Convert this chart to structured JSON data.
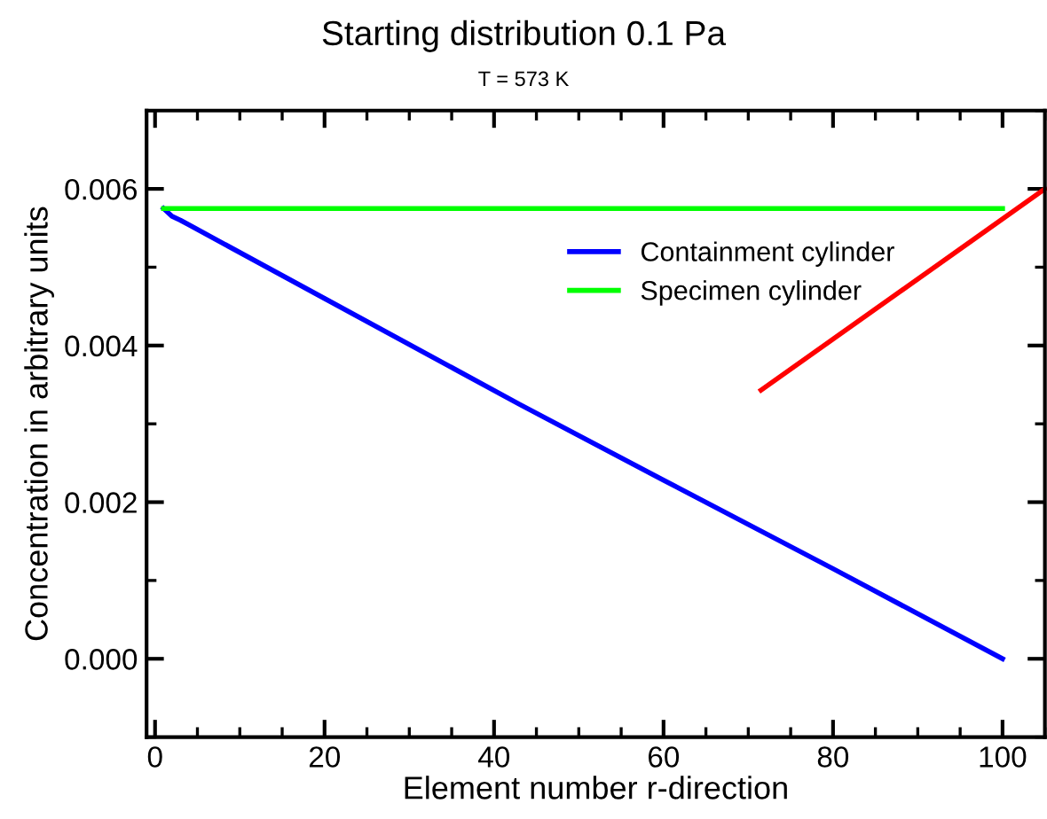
{
  "chart_data": {
    "type": "line",
    "title": "Starting distribution 0.1 Pa",
    "subtitle": "T = 573 K",
    "xlabel": "Element number r-direction",
    "ylabel": "Concentration in arbitrary units",
    "series": [
      {
        "name": "Containment cylinder",
        "color": "#0000ff",
        "x": [
          1,
          2,
          3,
          20,
          43,
          60,
          80,
          100
        ],
        "values": [
          0.00575,
          0.00565,
          0.0056,
          0.0046,
          0.00325,
          0.00228,
          0.00115,
          0
        ]
      },
      {
        "name": "Specimen cylinder",
        "color": "#00ff00",
        "x": [
          1,
          100
        ],
        "values": [
          0.00575,
          0.00575
        ]
      },
      {
        "color": "#ff0000",
        "x": [
          71.5,
          105
        ],
        "values": [
          0.00343,
          0.006
        ]
      }
    ],
    "xlim": [
      -1,
      105
    ],
    "xticks": [
      0,
      20,
      40,
      60,
      80,
      100
    ],
    "ylim": [
      -0.001,
      0.007
    ],
    "yticks": [
      {
        "value": 0,
        "label": "0.000"
      },
      {
        "value": 0.002,
        "label": "0.002"
      },
      {
        "value": 0.004,
        "label": "0.004"
      },
      {
        "value": 0.006,
        "label": "0.006"
      }
    ],
    "grid": false,
    "legend": "top right",
    "marker": "none",
    "line_style": "solid"
  }
}
